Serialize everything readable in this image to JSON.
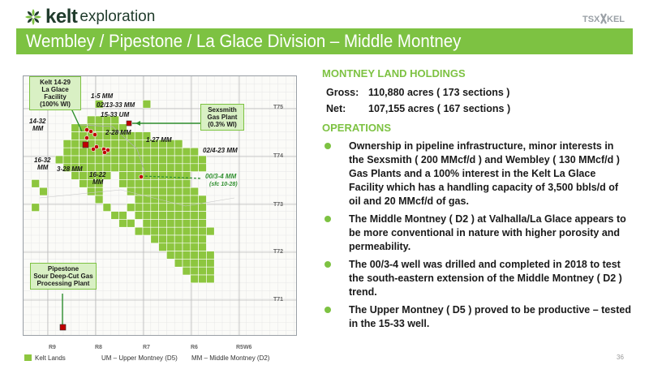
{
  "header": {
    "logo_brand": "kelt",
    "logo_tagline": "exploration",
    "exchange_logo": "TSX:KEL",
    "title": "Wembley / Pipestone / La Glace Division – Middle Montney"
  },
  "map": {
    "callouts": {
      "laglace": [
        "Kelt 14-29",
        "La Glace Facility",
        "(100% WI)"
      ],
      "sexsmith": [
        "Sexsmith",
        "Gas Plant",
        "(0.3% WI)"
      ],
      "pipestone": [
        "Pipestone",
        "Sour Deep-Cut Gas",
        "Processing Plant"
      ]
    },
    "well_labels": {
      "w1": "1-5 MM",
      "w2": "02/13-33 MM",
      "w3": "15-33 UM",
      "w4": "14-32",
      "w4b": "MM",
      "w5": "2-28 MM",
      "w6": "1-27 MM",
      "w7": "02/4-23 MM",
      "w8": "16-32",
      "w8b": "MM",
      "w9": "3-28 MM",
      "w10": "16-22",
      "w10b": "MM",
      "w11": "00/3-4 MM",
      "w11b": "(sfc 10-28)"
    },
    "townships": [
      "T75",
      "T74",
      "T73",
      "T72",
      "T71"
    ],
    "ranges": [
      "R9",
      "R8",
      "R7",
      "R6",
      "R5W6"
    ],
    "colors": {
      "land": "#8dc63f",
      "facility": "#c00000",
      "arrow": "#2f8f2f"
    }
  },
  "legend": {
    "kelt_lands": "Kelt Lands",
    "um": "UM – Upper Montney (D5)",
    "mm": "MM – Middle Montney (D2)"
  },
  "content": {
    "holdings_heading": "MONTNEY LAND HOLDINGS",
    "gross_label": "Gross:",
    "gross_value": "110,880 acres ( 173 sections )",
    "net_label": "Net:",
    "net_value": "107,155 acres ( 167 sections )",
    "operations_heading": "OPERATIONS",
    "bullets": [
      "Ownership in pipeline infrastructure, minor interests in the Sexsmith ( 200 MMcf/d ) and Wembley ( 130 MMcf/d ) Gas Plants and a 100% interest in the Kelt La Glace Facility which has a handling capacity of 3,500 bbls/d of oil and 20 MMcf/d of gas.",
      "The Middle Montney ( D2 ) at Valhalla/La Glace appears to be more conventional in nature with higher porosity  and permeability.",
      "The 00/3-4 well was drilled and completed in 2018 to test the south-eastern extension of the Middle Montney ( D2 ) trend.",
      "The Upper Montney ( D5 ) proved to be productive – tested in the 15-33 well."
    ]
  },
  "footer": {
    "page_number": "36"
  },
  "theme": {
    "accent": "#7dc242",
    "brand_dark": "#1f3b2b"
  }
}
